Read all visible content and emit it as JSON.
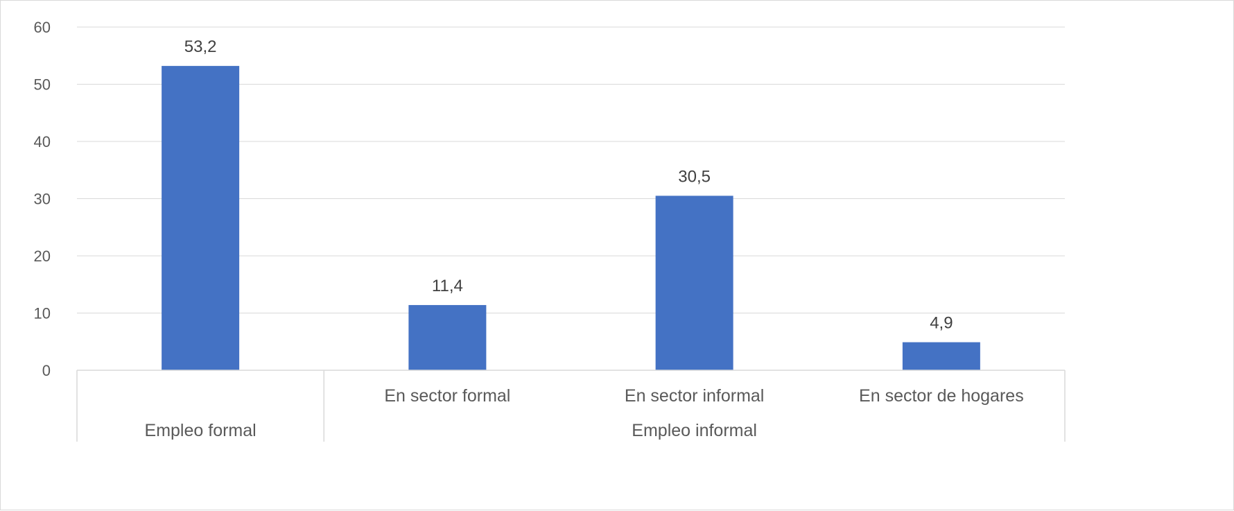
{
  "chart_data": {
    "type": "bar",
    "title": "",
    "xlabel": "",
    "ylabel": "",
    "ylim": [
      0,
      60
    ],
    "yticks": [
      0,
      10,
      20,
      30,
      40,
      50,
      60
    ],
    "grid": true,
    "legend": "none",
    "bar_color": "#4472c4",
    "grid_color": "#d9d9d9",
    "categories": [
      {
        "group": "Empleo formal",
        "label": "",
        "value": 53.2,
        "value_label": "53,2"
      },
      {
        "group": "Empleo informal",
        "label": "En sector formal",
        "value": 11.4,
        "value_label": "11,4"
      },
      {
        "group": "Empleo informal",
        "label": "En sector informal",
        "value": 30.5,
        "value_label": "30,5"
      },
      {
        "group": "Empleo informal",
        "label": "En sector de hogares",
        "value": 4.9,
        "value_label": "4,9"
      }
    ],
    "groups": [
      "Empleo formal",
      "Empleo informal"
    ]
  }
}
